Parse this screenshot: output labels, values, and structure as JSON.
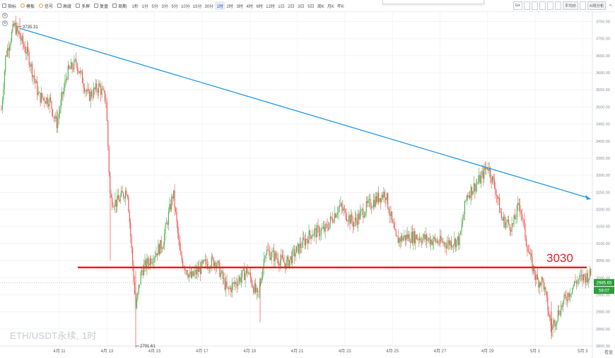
{
  "toolbar": {
    "left_tools": [
      {
        "icon": "indicator-icon",
        "label": "指标"
      },
      {
        "icon": "template-icon",
        "label": "模板"
      },
      {
        "icon": "signal-icon",
        "label": "信号"
      },
      {
        "icon": "advanced-icon",
        "label": "高级"
      },
      {
        "icon": "multi-chart-icon",
        "label": "多屏"
      },
      {
        "icon": "replay-icon",
        "label": "复盘"
      },
      {
        "icon": "period-icon",
        "label": "周期"
      }
    ],
    "intervals": [
      "1秒",
      "1分",
      "5分",
      "3分",
      "5分",
      "10分",
      "15分",
      "30分",
      "1时",
      "2时",
      "3时",
      "4时",
      "6时",
      "12时",
      "1日",
      "2日",
      "3日",
      "5日",
      "周K",
      "月K",
      "年K"
    ],
    "active_interval": "1时",
    "right_tools": [
      "Gs",
      "平均价",
      "K线分析"
    ]
  },
  "chart_data": {
    "type": "candlestick",
    "title": "ETH/USDT永续, 1时",
    "ylim": [
      2800,
      3780
    ],
    "y_ticks": [
      2800,
      2850,
      2900,
      2950,
      3000,
      3050,
      3100,
      3150,
      3200,
      3250,
      3300,
      3350,
      3400,
      3450,
      3500,
      3550,
      3600,
      3650,
      3700,
      3750
    ],
    "x_ticks": [
      "4月 11",
      "4月 13",
      "4月 15",
      "4月 17",
      "4月 19",
      "4月 21",
      "4月 23",
      "4月 25",
      "4月 27",
      "4月 29",
      "5月 1",
      "5月 3"
    ],
    "high_annotation": "3735.31",
    "low_annotation": "2791.61",
    "horizontal_line": {
      "value": 3030,
      "label": "3030",
      "color": "#e8262b"
    },
    "trend_line": {
      "color": "#2a9be6",
      "from": {
        "x_tick": "4月 11",
        "value": 3730
      },
      "to": {
        "x_tick": "5月 3",
        "value": 3230
      }
    },
    "last_price": "2985.65",
    "countdown": "59:07",
    "up_color": "#4caf50",
    "down_color": "#ef5350",
    "waypoints": [
      [
        0,
        3440
      ],
      [
        8,
        3650
      ],
      [
        20,
        3740
      ],
      [
        40,
        3650
      ],
      [
        55,
        3530
      ],
      [
        70,
        3520
      ],
      [
        80,
        3450
      ],
      [
        95,
        3600
      ],
      [
        108,
        3630
      ],
      [
        125,
        3530
      ],
      [
        140,
        3560
      ],
      [
        150,
        3520
      ],
      [
        156,
        3230
      ],
      [
        165,
        3220
      ],
      [
        180,
        3260
      ],
      [
        192,
        2910
      ],
      [
        200,
        3020
      ],
      [
        215,
        3060
      ],
      [
        230,
        3100
      ],
      [
        245,
        3250
      ],
      [
        255,
        3060
      ],
      [
        270,
        3000
      ],
      [
        290,
        3040
      ],
      [
        305,
        3050
      ],
      [
        322,
        2960
      ],
      [
        335,
        2990
      ],
      [
        350,
        3020
      ],
      [
        365,
        2940
      ],
      [
        375,
        3080
      ],
      [
        390,
        3060
      ],
      [
        405,
        3040
      ],
      [
        420,
        3080
      ],
      [
        440,
        3130
      ],
      [
        460,
        3140
      ],
      [
        480,
        3210
      ],
      [
        500,
        3160
      ],
      [
        520,
        3210
      ],
      [
        545,
        3250
      ],
      [
        560,
        3110
      ],
      [
        575,
        3120
      ],
      [
        590,
        3120
      ],
      [
        610,
        3110
      ],
      [
        630,
        3100
      ],
      [
        650,
        3110
      ],
      [
        660,
        3240
      ],
      [
        672,
        3270
      ],
      [
        680,
        3290
      ],
      [
        690,
        3330
      ],
      [
        702,
        3250
      ],
      [
        710,
        3170
      ],
      [
        725,
        3150
      ],
      [
        735,
        3220
      ],
      [
        745,
        3100
      ],
      [
        752,
        3040
      ],
      [
        760,
        2990
      ],
      [
        768,
        2990
      ],
      [
        780,
        2850
      ],
      [
        790,
        2900
      ],
      [
        800,
        2940
      ],
      [
        815,
        2990
      ],
      [
        836,
        3010
      ]
    ]
  },
  "left_icons": [
    "settings-circle-icon",
    "gear-icon"
  ],
  "corner_label": "看盘"
}
